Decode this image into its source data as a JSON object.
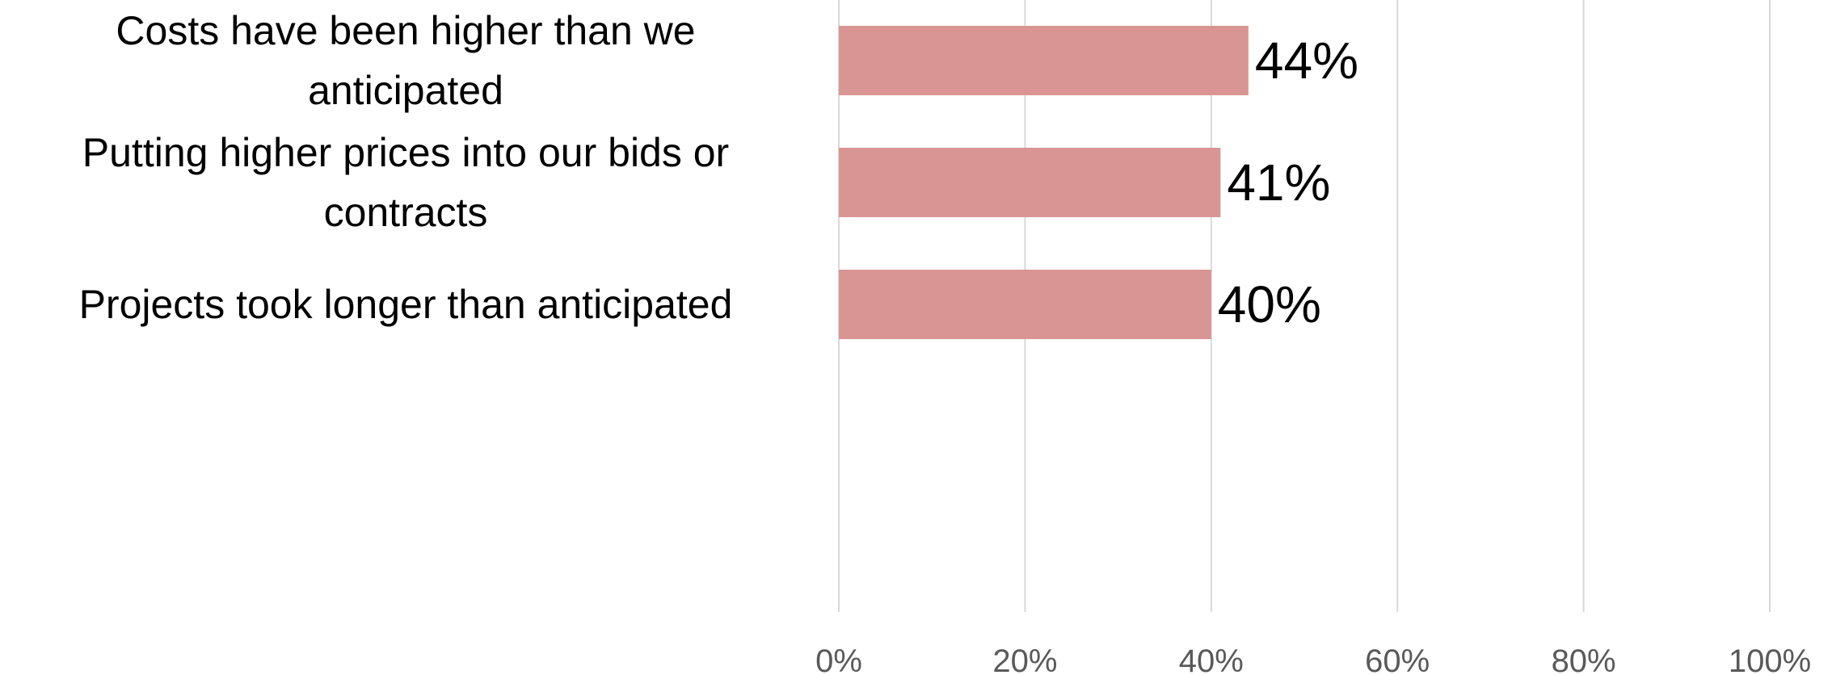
{
  "chart_data": {
    "type": "bar",
    "orientation": "horizontal",
    "categories": [
      "Costs have been higher than we anticipated",
      "Putting higher prices into our bids or contracts",
      "Projects took longer than anticipated"
    ],
    "category_lines": [
      [
        "Costs have been higher than we",
        "anticipated"
      ],
      [
        "Putting higher prices into our bids or",
        "contracts"
      ],
      [
        "Projects took longer than anticipated"
      ]
    ],
    "values": [
      44,
      41,
      40
    ],
    "value_labels": [
      "44%",
      "41%",
      "40%"
    ],
    "xlim": [
      0,
      100
    ],
    "x_ticks": [
      0,
      20,
      40,
      60,
      80,
      100
    ],
    "x_tick_labels": [
      "0%",
      "20%",
      "40%",
      "60%",
      "80%",
      "100%"
    ],
    "grid": true,
    "bar_color": "#d99594",
    "title": "",
    "xlabel": "",
    "ylabel": ""
  }
}
